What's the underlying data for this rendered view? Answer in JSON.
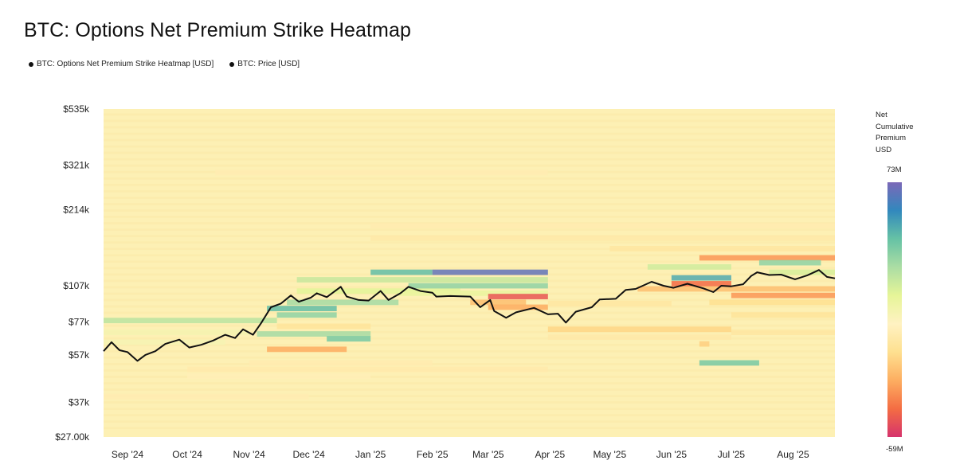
{
  "title": "BTC: Options Net Premium Strike Heatmap",
  "legend": [
    {
      "label": "BTC: Options Net Premium Strike Heatmap [USD]",
      "color": "#111111"
    },
    {
      "label": "BTC: Price [USD]",
      "color": "#111111"
    }
  ],
  "colorbar": {
    "title_lines": [
      "Net",
      "Cumulative",
      "Premium",
      "USD"
    ],
    "max_label": "73M",
    "min_label": "-59M",
    "max_value": 73000000,
    "min_value": -59000000,
    "colors": [
      "#d6336c",
      "#f46d43",
      "#fdae61",
      "#fee090",
      "#fff2c2",
      "#e6f598",
      "#abdda4",
      "#66c2a5",
      "#3288bd",
      "#7b68b8"
    ]
  },
  "chart_data": {
    "type": "heatmap",
    "title": "BTC: Options Net Premium Strike Heatmap",
    "y_scale": "log",
    "ylim": [
      27000,
      535000
    ],
    "xlim": [
      "2024-08-20",
      "2025-08-22"
    ],
    "y_ticks": [
      {
        "value": 535000,
        "label": "$535k"
      },
      {
        "value": 321000,
        "label": "$321k"
      },
      {
        "value": 214000,
        "label": "$214k"
      },
      {
        "value": 107000,
        "label": "$107k"
      },
      {
        "value": 77000,
        "label": "$77k"
      },
      {
        "value": 57000,
        "label": "$57k"
      },
      {
        "value": 37000,
        "label": "$37k"
      },
      {
        "value": 27000,
        "label": "$27.00k"
      }
    ],
    "x_ticks": [
      {
        "date": "2024-09-01",
        "label": "Sep '24"
      },
      {
        "date": "2024-10-01",
        "label": "Oct '24"
      },
      {
        "date": "2024-11-01",
        "label": "Nov '24"
      },
      {
        "date": "2024-12-01",
        "label": "Dec '24"
      },
      {
        "date": "2025-01-01",
        "label": "Jan '25"
      },
      {
        "date": "2025-02-01",
        "label": "Feb '25"
      },
      {
        "date": "2025-03-01",
        "label": "Mar '25"
      },
      {
        "date": "2025-04-01",
        "label": "Apr '25"
      },
      {
        "date": "2025-05-01",
        "label": "May '25"
      },
      {
        "date": "2025-06-01",
        "label": "Jun '25"
      },
      {
        "date": "2025-07-01",
        "label": "Jul '25"
      },
      {
        "date": "2025-08-01",
        "label": "Aug '25"
      }
    ],
    "background_value": 0,
    "bands": [
      {
        "start": "2024-08-20",
        "end": "2024-11-15",
        "strike": 78000,
        "value": 25000000
      },
      {
        "start": "2024-08-20",
        "end": "2024-11-01",
        "strike": 70000,
        "value": 6000000
      },
      {
        "start": "2024-08-20",
        "end": "2024-10-20",
        "strike": 64000,
        "value": 5000000
      },
      {
        "start": "2024-08-20",
        "end": "2024-12-01",
        "strike": 39000,
        "value": -5000000
      },
      {
        "start": "2024-10-01",
        "end": "2025-03-31",
        "strike": 50000,
        "value": -7000000
      },
      {
        "start": "2024-10-01",
        "end": "2025-01-01",
        "strike": 47000,
        "value": -4000000
      },
      {
        "start": "2024-11-01",
        "end": "2025-02-01",
        "strike": 53000,
        "value": -6000000
      },
      {
        "start": "2024-11-10",
        "end": "2024-12-20",
        "strike": 60000,
        "value": -30000000
      },
      {
        "start": "2024-11-05",
        "end": "2025-01-01",
        "strike": 69000,
        "value": 30000000
      },
      {
        "start": "2024-12-10",
        "end": "2025-01-01",
        "strike": 66000,
        "value": 40000000
      },
      {
        "start": "2024-11-15",
        "end": "2025-01-01",
        "strike": 74000,
        "value": -12000000
      },
      {
        "start": "2024-11-15",
        "end": "2024-12-15",
        "strike": 82000,
        "value": 35000000
      },
      {
        "start": "2024-11-10",
        "end": "2024-12-15",
        "strike": 87000,
        "value": 45000000
      },
      {
        "start": "2024-11-20",
        "end": "2025-01-15",
        "strike": 92000,
        "value": 30000000
      },
      {
        "start": "2024-11-25",
        "end": "2025-02-15",
        "strike": 102000,
        "value": 15000000
      },
      {
        "start": "2024-11-25",
        "end": "2025-03-31",
        "strike": 113000,
        "value": 22000000
      },
      {
        "start": "2025-01-01",
        "end": "2025-02-01",
        "strike": 121000,
        "value": 45000000
      },
      {
        "start": "2025-02-01",
        "end": "2025-03-31",
        "strike": 121000,
        "value": 68000000
      },
      {
        "start": "2025-01-20",
        "end": "2025-03-31",
        "strike": 107000,
        "value": 35000000
      },
      {
        "start": "2025-01-15",
        "end": "2025-03-31",
        "strike": 100000,
        "value": 12000000
      },
      {
        "start": "2025-02-20",
        "end": "2025-03-20",
        "strike": 92000,
        "value": -25000000
      },
      {
        "start": "2025-03-01",
        "end": "2025-03-31",
        "strike": 97000,
        "value": -50000000
      },
      {
        "start": "2025-03-01",
        "end": "2025-03-31",
        "strike": 88000,
        "value": -30000000
      },
      {
        "start": "2025-03-31",
        "end": "2025-06-01",
        "strike": 91000,
        "value": -10000000
      },
      {
        "start": "2025-03-31",
        "end": "2025-07-01",
        "strike": 72000,
        "value": -18000000
      },
      {
        "start": "2025-03-31",
        "end": "2025-07-01",
        "strike": 67000,
        "value": -8000000
      },
      {
        "start": "2024-10-15",
        "end": "2025-03-31",
        "strike": 300000,
        "value": -5000000
      },
      {
        "start": "2025-01-01",
        "end": "2025-08-22",
        "strike": 185000,
        "value": -6000000
      },
      {
        "start": "2025-01-01",
        "end": "2025-08-22",
        "strike": 165000,
        "value": -8000000
      },
      {
        "start": "2025-05-01",
        "end": "2025-08-22",
        "strike": 150000,
        "value": -10000000
      },
      {
        "start": "2025-06-15",
        "end": "2025-08-22",
        "strike": 138000,
        "value": -35000000
      },
      {
        "start": "2025-07-15",
        "end": "2025-08-15",
        "strike": 132000,
        "value": 35000000
      },
      {
        "start": "2025-06-01",
        "end": "2025-07-01",
        "strike": 115000,
        "value": 50000000
      },
      {
        "start": "2025-06-01",
        "end": "2025-07-01",
        "strike": 109000,
        "value": -45000000
      },
      {
        "start": "2025-05-15",
        "end": "2025-08-22",
        "strike": 104000,
        "value": -25000000
      },
      {
        "start": "2025-07-01",
        "end": "2025-08-22",
        "strike": 98000,
        "value": -35000000
      },
      {
        "start": "2025-06-20",
        "end": "2025-08-22",
        "strike": 92000,
        "value": -15000000
      },
      {
        "start": "2025-07-01",
        "end": "2025-08-22",
        "strike": 82000,
        "value": -12000000
      },
      {
        "start": "2025-07-01",
        "end": "2025-08-22",
        "strike": 70000,
        "value": -10000000
      },
      {
        "start": "2025-06-15",
        "end": "2025-06-20",
        "strike": 63000,
        "value": -20000000
      },
      {
        "start": "2025-06-15",
        "end": "2025-07-15",
        "strike": 53000,
        "value": 40000000
      },
      {
        "start": "2025-07-20",
        "end": "2025-08-22",
        "strike": 121000,
        "value": 18000000
      },
      {
        "start": "2025-05-20",
        "end": "2025-07-01",
        "strike": 127000,
        "value": 20000000
      }
    ],
    "price_series": {
      "name": "BTC: Price [USD]",
      "points": [
        [
          "2024-08-20",
          59000
        ],
        [
          "2024-08-24",
          64000
        ],
        [
          "2024-08-28",
          59500
        ],
        [
          "2024-09-01",
          58500
        ],
        [
          "2024-09-06",
          54000
        ],
        [
          "2024-09-10",
          57000
        ],
        [
          "2024-09-15",
          59000
        ],
        [
          "2024-09-20",
          63000
        ],
        [
          "2024-09-27",
          65500
        ],
        [
          "2024-10-02",
          61000
        ],
        [
          "2024-10-08",
          62500
        ],
        [
          "2024-10-14",
          65000
        ],
        [
          "2024-10-20",
          68500
        ],
        [
          "2024-10-25",
          66500
        ],
        [
          "2024-10-29",
          72000
        ],
        [
          "2024-11-03",
          68500
        ],
        [
          "2024-11-07",
          76000
        ],
        [
          "2024-11-12",
          88000
        ],
        [
          "2024-11-17",
          91000
        ],
        [
          "2024-11-22",
          98000
        ],
        [
          "2024-11-26",
          92500
        ],
        [
          "2024-12-02",
          96000
        ],
        [
          "2024-12-05",
          100000
        ],
        [
          "2024-12-10",
          96500
        ],
        [
          "2024-12-17",
          106000
        ],
        [
          "2024-12-20",
          97000
        ],
        [
          "2024-12-26",
          94000
        ],
        [
          "2024-12-31",
          93500
        ],
        [
          "2025-01-06",
          102000
        ],
        [
          "2025-01-10",
          94000
        ],
        [
          "2025-01-16",
          100000
        ],
        [
          "2025-01-20",
          106000
        ],
        [
          "2025-01-26",
          102000
        ],
        [
          "2025-02-01",
          100500
        ],
        [
          "2025-02-03",
          97000
        ],
        [
          "2025-02-10",
          97500
        ],
        [
          "2025-02-20",
          97000
        ],
        [
          "2025-02-25",
          88000
        ],
        [
          "2025-03-02",
          94000
        ],
        [
          "2025-03-04",
          85000
        ],
        [
          "2025-03-10",
          80000
        ],
        [
          "2025-03-15",
          84000
        ],
        [
          "2025-03-24",
          87500
        ],
        [
          "2025-03-31",
          82500
        ],
        [
          "2025-04-05",
          83000
        ],
        [
          "2025-04-09",
          76500
        ],
        [
          "2025-04-14",
          84500
        ],
        [
          "2025-04-22",
          88000
        ],
        [
          "2025-04-26",
          94500
        ],
        [
          "2025-05-04",
          95000
        ],
        [
          "2025-05-09",
          103000
        ],
        [
          "2025-05-14",
          104000
        ],
        [
          "2025-05-22",
          111000
        ],
        [
          "2025-05-28",
          107000
        ],
        [
          "2025-06-02",
          105000
        ],
        [
          "2025-06-09",
          109000
        ],
        [
          "2025-06-17",
          104500
        ],
        [
          "2025-06-22",
          101000
        ],
        [
          "2025-06-26",
          107000
        ],
        [
          "2025-07-01",
          106500
        ],
        [
          "2025-07-07",
          108500
        ],
        [
          "2025-07-11",
          117000
        ],
        [
          "2025-07-14",
          121000
        ],
        [
          "2025-07-20",
          118000
        ],
        [
          "2025-07-26",
          118500
        ],
        [
          "2025-08-02",
          113500
        ],
        [
          "2025-08-08",
          117500
        ],
        [
          "2025-08-14",
          123500
        ],
        [
          "2025-08-18",
          116000
        ],
        [
          "2025-08-22",
          114500
        ]
      ]
    }
  }
}
